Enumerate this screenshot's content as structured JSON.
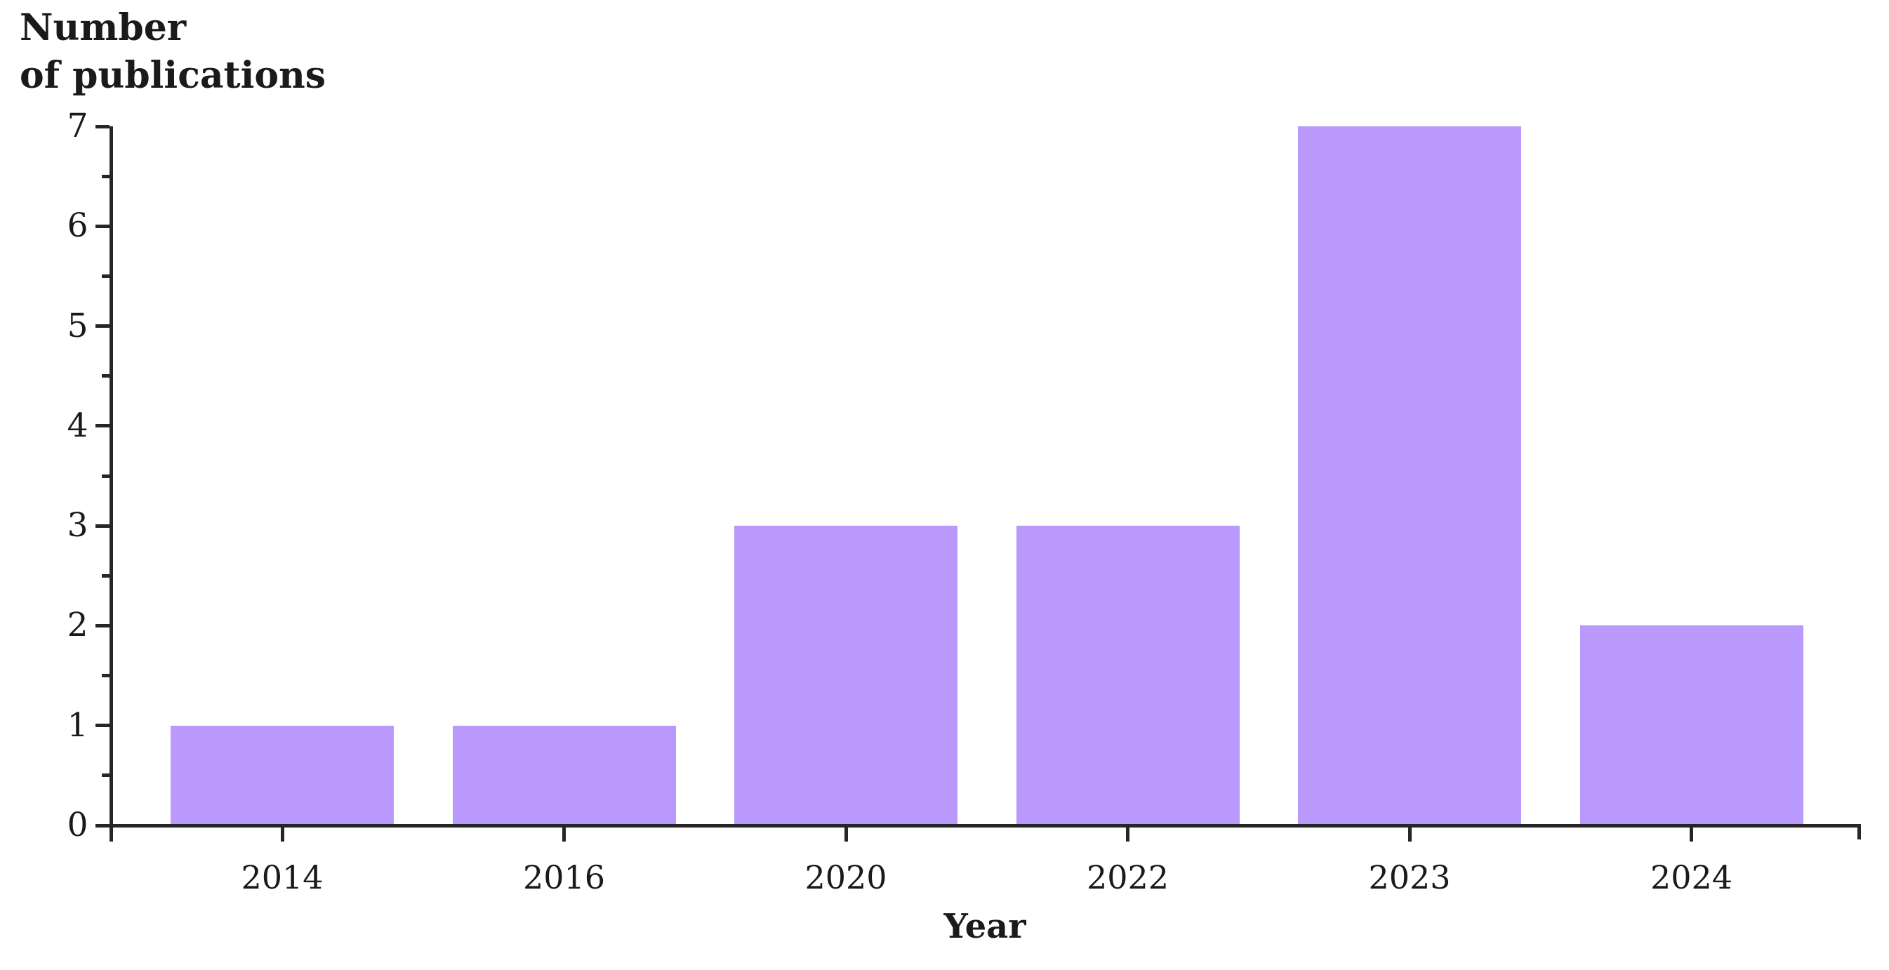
{
  "chart_data": {
    "type": "bar",
    "title": "",
    "categories": [
      "2014",
      "2016",
      "2020",
      "2022",
      "2023",
      "2024"
    ],
    "values": [
      1,
      1,
      3,
      3,
      7,
      2
    ],
    "xlabel": "Year",
    "ylabel": "Number of publications",
    "ylabel_lines": [
      "Number",
      "of publications"
    ],
    "ylim": [
      0,
      7
    ],
    "yticks": [
      0,
      1,
      2,
      3,
      4,
      5,
      6,
      7
    ],
    "minor_yticks": [
      0.5,
      1.5,
      2.5,
      3.5,
      4.5,
      5.5,
      6.5
    ],
    "grid": false,
    "legend_position": "none",
    "colors": {
      "bar": "#b999fb",
      "axis": "#262626",
      "text": "#1a1a1a"
    }
  }
}
